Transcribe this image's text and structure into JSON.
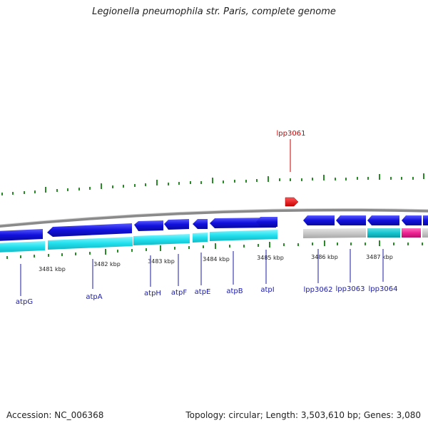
{
  "title": "Legionella pneumophila str. Paris, complete genome",
  "footer": {
    "accession": "Accession: NC_006368",
    "summary": "Topology: circular; Length: 3,503,610 bp; Genes: 3,080"
  },
  "colors": {
    "backbone": "#8a8a8a",
    "gene_blue": "#1111dd",
    "cds_cyan": "#22e0ee",
    "cds_grey": "#c8c8c8",
    "cds_teal": "#16c6cf",
    "cds_pink": "#ee2293",
    "highlight_red": "#ee1111",
    "tick_green": "#2a8a2a",
    "label_blue": "#1a1aa8",
    "label_red": "#cc0000"
  },
  "kbp_labels": [
    "3481 kbp",
    "3482 kbp",
    "3483 kbp",
    "3484 kbp",
    "3485 kbp",
    "3486 kbp",
    "3487 kbp"
  ],
  "genes": [
    "atpG",
    "atpA",
    "atpH",
    "atpF",
    "atpE",
    "atpB",
    "atpI",
    "lpp3062",
    "lpp3063",
    "lpp3064"
  ],
  "highlight_gene": "lpp3061"
}
